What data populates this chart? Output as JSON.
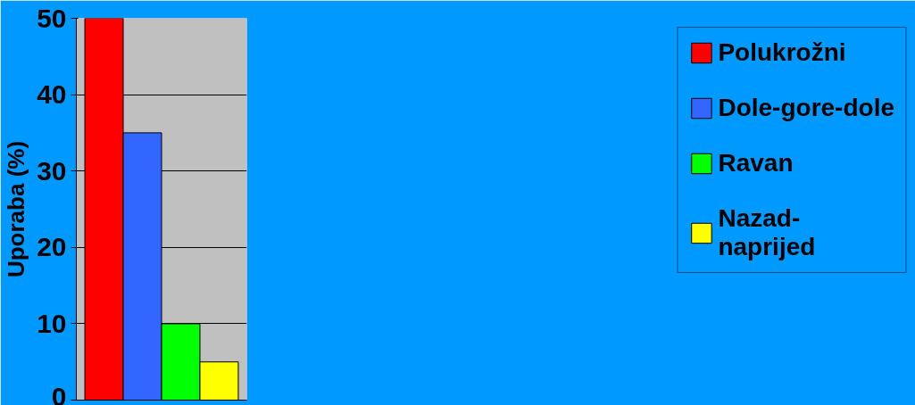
{
  "chart_data": {
    "type": "bar",
    "ylabel": "Uporaba (%)",
    "categories": [
      null
    ],
    "series": [
      {
        "name": "Polukrožni",
        "color": "#ff0000",
        "values": [
          50
        ]
      },
      {
        "name": "Dole-gore-dole",
        "color": "#3366ff",
        "values": [
          35
        ]
      },
      {
        "name": "Ravan",
        "color": "#00ff00",
        "values": [
          10
        ]
      },
      {
        "name": "Nazad-\nnaprijed",
        "color": "#ffff00",
        "values": [
          5
        ]
      }
    ],
    "ylim": [
      0,
      50
    ],
    "yticks": [
      0,
      10,
      20,
      30,
      40,
      50
    ],
    "grid": "y",
    "legend": "right"
  }
}
